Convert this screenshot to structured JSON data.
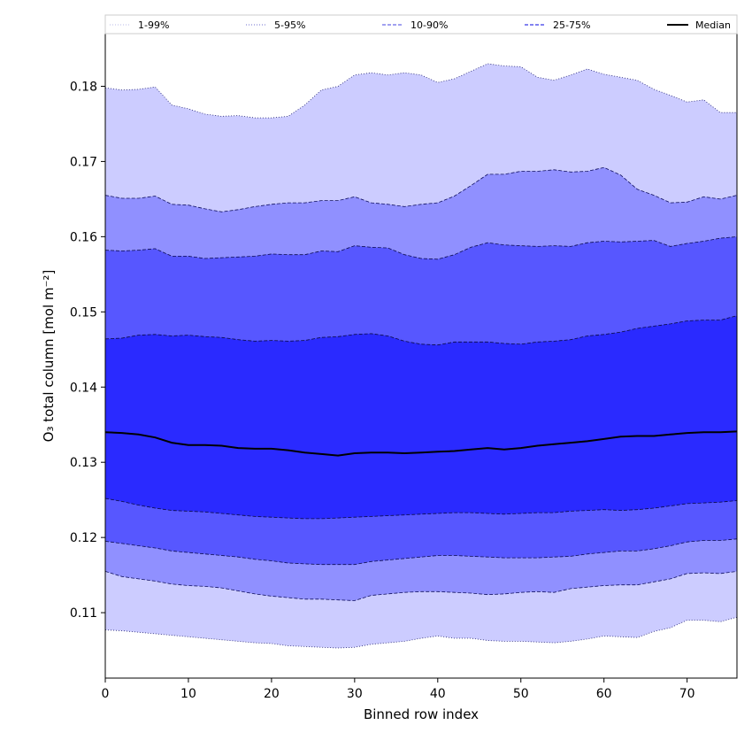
{
  "chart_data": {
    "type": "area",
    "title": "",
    "xlabel": "Binned row index",
    "ylabel": "O₃ total column [mol m⁻²]",
    "xlim": [
      0,
      76
    ],
    "ylim": [
      0.1013,
      0.187
    ],
    "x_ticks": [
      0,
      10,
      20,
      30,
      40,
      50,
      60,
      70
    ],
    "y_ticks": [
      0.11,
      0.12,
      0.13,
      0.14,
      0.15,
      0.16,
      0.17,
      0.18
    ],
    "grid": false,
    "legend_position": "top, across full width",
    "x": [
      0,
      2,
      4,
      6,
      8,
      10,
      12,
      14,
      16,
      18,
      20,
      22,
      24,
      26,
      28,
      30,
      32,
      34,
      36,
      38,
      40,
      42,
      44,
      46,
      48,
      50,
      52,
      54,
      56,
      58,
      60,
      62,
      64,
      66,
      68,
      70,
      72,
      74,
      76
    ],
    "bands": [
      {
        "name": "1-99%",
        "fill_color": "#ccccff",
        "edge_color": "#1a1a6e",
        "edge_style": "dotted",
        "lower": [
          0.1077,
          0.1076,
          0.1074,
          0.1072,
          0.107,
          0.1068,
          0.1066,
          0.1064,
          0.1062,
          0.106,
          0.1059,
          0.1056,
          0.1055,
          0.1054,
          0.1053,
          0.1054,
          0.1058,
          0.106,
          0.1062,
          0.1066,
          0.1069,
          0.1066,
          0.1066,
          0.1063,
          0.1062,
          0.1062,
          0.1061,
          0.106,
          0.1062,
          0.1065,
          0.1069,
          0.1068,
          0.1067,
          0.1075,
          0.108,
          0.109,
          0.109,
          0.1088,
          0.1094
        ],
        "upper": [
          0.1798,
          0.1795,
          0.1796,
          0.1799,
          0.1775,
          0.177,
          0.1763,
          0.176,
          0.1761,
          0.1758,
          0.1758,
          0.176,
          0.1775,
          0.1795,
          0.18,
          0.1815,
          0.1818,
          0.1815,
          0.1818,
          0.1815,
          0.1805,
          0.181,
          0.182,
          0.183,
          0.1827,
          0.1826,
          0.1812,
          0.1808,
          0.1815,
          0.1823,
          0.1816,
          0.1812,
          0.1808,
          0.1796,
          0.1788,
          0.1779,
          0.1782,
          0.1765,
          0.1765
        ]
      },
      {
        "name": "5-95%",
        "fill_color": "#9090ff",
        "edge_color": "#101060",
        "edge_style": "dashed",
        "lower": [
          0.1155,
          0.1148,
          0.1145,
          0.1142,
          0.1138,
          0.1136,
          0.1135,
          0.1133,
          0.1129,
          0.1125,
          0.1122,
          0.112,
          0.1118,
          0.1118,
          0.1117,
          0.1116,
          0.1123,
          0.1125,
          0.1127,
          0.1128,
          0.1128,
          0.1127,
          0.1126,
          0.1124,
          0.1125,
          0.1127,
          0.1128,
          0.1127,
          0.1132,
          0.1134,
          0.1136,
          0.1137,
          0.1137,
          0.1141,
          0.1145,
          0.1152,
          0.1153,
          0.1152,
          0.1155
        ]
      },
      {
        "name": "10-90%",
        "fill_color": "#5757ff",
        "edge_color": "#0c0c50",
        "edge_style": "dashed",
        "upper": [
          0.1582,
          0.1581,
          0.1582,
          0.1584,
          0.1574,
          0.1574,
          0.1571,
          0.1572,
          0.1573,
          0.1574,
          0.1577,
          0.1576,
          0.1576,
          0.1581,
          0.158,
          0.1588,
          0.1586,
          0.1585,
          0.1576,
          0.1571,
          0.157,
          0.1576,
          0.1586,
          0.1592,
          0.1589,
          0.1588,
          0.1587,
          0.1588,
          0.1587,
          0.1592,
          0.1594,
          0.1593,
          0.1594,
          0.1595,
          0.1587,
          0.1591,
          0.1594,
          0.1598,
          0.16
        ],
        "lower": [
          0.1195,
          0.1192,
          0.1189,
          0.1186,
          0.1182,
          0.118,
          0.1178,
          0.1176,
          0.1174,
          0.1171,
          0.1169,
          0.1166,
          0.1165,
          0.1164,
          0.1164,
          0.1164,
          0.1168,
          0.117,
          0.1172,
          0.1174,
          0.1176,
          0.1176,
          0.1175,
          0.1174,
          0.1173,
          0.1173,
          0.1173,
          0.1174,
          0.1175,
          0.1178,
          0.118,
          0.1182,
          0.1182,
          0.1185,
          0.1189,
          0.1194,
          0.1196,
          0.1196,
          0.1198
        ]
      },
      {
        "name": "25-75%",
        "fill_color": "#2a2aff",
        "edge_color": "#0a0a40",
        "edge_style": "dashed",
        "upper": [
          0.1464,
          0.1465,
          0.1469,
          0.147,
          0.1468,
          0.1469,
          0.1467,
          0.1466,
          0.1463,
          0.1461,
          0.1462,
          0.1461,
          0.1462,
          0.1466,
          0.1467,
          0.147,
          0.1471,
          0.1468,
          0.1461,
          0.1457,
          0.1456,
          0.146,
          0.146,
          0.146,
          0.1458,
          0.1457,
          0.146,
          0.1461,
          0.1463,
          0.1468,
          0.147,
          0.1473,
          0.1478,
          0.1481,
          0.1484,
          0.1488,
          0.1489,
          0.1489,
          0.1495
        ],
        "lower": [
          0.1252,
          0.1248,
          0.1243,
          0.1239,
          0.1236,
          0.1235,
          0.1234,
          0.1232,
          0.123,
          0.1228,
          0.1227,
          0.1226,
          0.1225,
          0.1225,
          0.1226,
          0.1227,
          0.1228,
          0.1229,
          0.123,
          0.1231,
          0.1232,
          0.1233,
          0.1233,
          0.1232,
          0.1231,
          0.1232,
          0.1233,
          0.1233,
          0.1235,
          0.1236,
          0.1237,
          0.1236,
          0.1237,
          0.1239,
          0.1242,
          0.1245,
          0.1246,
          0.1247,
          0.1249
        ]
      }
    ],
    "median": {
      "name": "Median",
      "color": "#000000",
      "values": [
        0.134,
        0.1339,
        0.1337,
        0.1333,
        0.1326,
        0.1323,
        0.1323,
        0.1322,
        0.1319,
        0.1318,
        0.1318,
        0.1316,
        0.1313,
        0.1311,
        0.1309,
        0.1312,
        0.1313,
        0.1313,
        0.1312,
        0.1313,
        0.1314,
        0.1315,
        0.1317,
        0.1319,
        0.1317,
        0.1319,
        0.1322,
        0.1324,
        0.1326,
        0.1328,
        0.1331,
        0.1334,
        0.1335,
        0.1335,
        0.1337,
        0.1339,
        0.134,
        0.134,
        0.1341
      ]
    },
    "legend": [
      {
        "label": "1-99%",
        "style": "dotted",
        "color": "#c8c8ee"
      },
      {
        "label": "5-95%",
        "style": "dotted",
        "color": "#8a8ad8"
      },
      {
        "label": "10-90%",
        "style": "dashed",
        "color": "#6a6ae6"
      },
      {
        "label": "25-75%",
        "style": "dashed",
        "color": "#3838e8"
      },
      {
        "label": "Median",
        "style": "solid",
        "color": "#000000"
      }
    ]
  }
}
